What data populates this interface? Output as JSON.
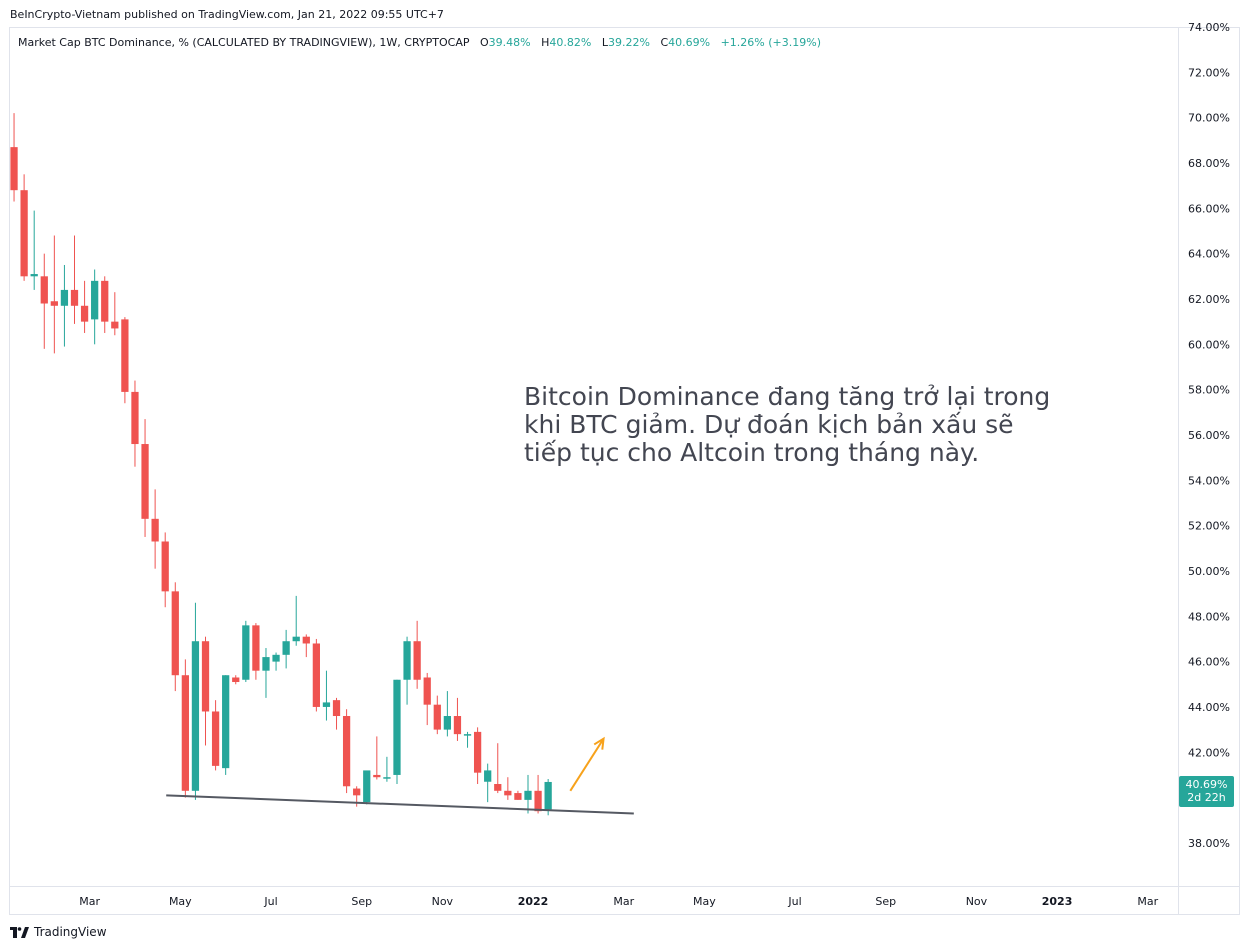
{
  "publisher_line": "BeInCrypto-Vietnam published on TradingView.com, Jan 21, 2022 09:55 UTC+7",
  "legend": {
    "symbol": "Market Cap BTC Dominance, % (CALCULATED BY TRADINGVIEW), 1W, CRYPTOCAP",
    "o_label": "O",
    "o_value": "39.48%",
    "h_label": "H",
    "h_value": "40.82%",
    "l_label": "L",
    "l_value": "39.22%",
    "c_label": "C",
    "c_value": "40.69%",
    "change": "+1.26% (+3.19%)"
  },
  "annotation": {
    "lines": [
      "Bitcoin Dominance đang tăng trở lại trong",
      "khi BTC giảm. Dự đoán kịch bản xấu sẽ",
      "tiếp tục cho Altcoin trong tháng này."
    ]
  },
  "price_tag": {
    "value": "40.69%",
    "countdown": "2d 22h"
  },
  "footer": {
    "brand": "TradingView"
  },
  "colors": {
    "up": "#26a69a",
    "down": "#ef5350",
    "trendline": "#555962",
    "arrow": "#f7a21b",
    "grid_border": "#e0e3eb"
  },
  "chart_data": {
    "type": "candlestick",
    "title": "Market Cap BTC Dominance, % (CALCULATED BY TRADINGVIEW), 1W, CRYPTOCAP",
    "y_unit": "%",
    "ylim": [
      36.1,
      74.0
    ],
    "y_ticks": [
      "38.00%",
      "40.00%",
      "42.00%",
      "44.00%",
      "46.00%",
      "48.00%",
      "50.00%",
      "52.00%",
      "54.00%",
      "56.00%",
      "58.00%",
      "60.00%",
      "62.00%",
      "64.00%",
      "66.00%",
      "68.00%",
      "70.00%",
      "72.00%",
      "74.00%"
    ],
    "x_ticks": [
      {
        "label": "Mar",
        "idx": 7.5,
        "bold": false
      },
      {
        "label": "May",
        "idx": 16.5,
        "bold": false
      },
      {
        "label": "Jul",
        "idx": 25.5,
        "bold": false
      },
      {
        "label": "Sep",
        "idx": 34.5,
        "bold": false
      },
      {
        "label": "Nov",
        "idx": 42.5,
        "bold": false
      },
      {
        "label": "2022",
        "idx": 51.5,
        "bold": true
      },
      {
        "label": "Mar",
        "idx": 60.5,
        "bold": false
      },
      {
        "label": "May",
        "idx": 68.5,
        "bold": false
      },
      {
        "label": "Jul",
        "idx": 77.5,
        "bold": false
      },
      {
        "label": "Sep",
        "idx": 86.5,
        "bold": false
      },
      {
        "label": "Nov",
        "idx": 95.5,
        "bold": false
      },
      {
        "label": "2023",
        "idx": 103.5,
        "bold": true
      },
      {
        "label": "Mar",
        "idx": 112.5,
        "bold": false
      }
    ],
    "x_range": [
      -0.5,
      115.5
    ],
    "candles": [
      {
        "o": 68.7,
        "h": 70.2,
        "l": 66.3,
        "c": 66.8
      },
      {
        "o": 66.8,
        "h": 67.5,
        "l": 62.8,
        "c": 63.0
      },
      {
        "o": 63.0,
        "h": 65.9,
        "l": 62.4,
        "c": 63.1
      },
      {
        "o": 63.0,
        "h": 64.0,
        "l": 59.8,
        "c": 61.8
      },
      {
        "o": 61.9,
        "h": 64.8,
        "l": 59.6,
        "c": 61.7
      },
      {
        "o": 61.7,
        "h": 63.5,
        "l": 59.9,
        "c": 62.4
      },
      {
        "o": 62.4,
        "h": 64.8,
        "l": 60.9,
        "c": 61.7
      },
      {
        "o": 61.7,
        "h": 62.8,
        "l": 60.5,
        "c": 61.0
      },
      {
        "o": 61.1,
        "h": 63.3,
        "l": 60.0,
        "c": 62.8
      },
      {
        "o": 62.8,
        "h": 63.0,
        "l": 60.5,
        "c": 61.0
      },
      {
        "o": 61.0,
        "h": 62.3,
        "l": 60.4,
        "c": 60.7
      },
      {
        "o": 61.1,
        "h": 61.2,
        "l": 57.4,
        "c": 57.9
      },
      {
        "o": 57.9,
        "h": 58.4,
        "l": 54.6,
        "c": 55.6
      },
      {
        "o": 55.6,
        "h": 56.7,
        "l": 51.5,
        "c": 52.3
      },
      {
        "o": 52.3,
        "h": 53.6,
        "l": 50.1,
        "c": 51.3
      },
      {
        "o": 51.3,
        "h": 51.7,
        "l": 48.4,
        "c": 49.1
      },
      {
        "o": 49.1,
        "h": 49.5,
        "l": 44.7,
        "c": 45.4
      },
      {
        "o": 45.4,
        "h": 46.1,
        "l": 40.0,
        "c": 40.3
      },
      {
        "o": 40.3,
        "h": 48.6,
        "l": 39.9,
        "c": 46.9
      },
      {
        "o": 46.9,
        "h": 47.1,
        "l": 42.3,
        "c": 43.8
      },
      {
        "o": 43.8,
        "h": 44.3,
        "l": 41.2,
        "c": 41.4
      },
      {
        "o": 41.3,
        "h": 45.4,
        "l": 41.0,
        "c": 45.4
      },
      {
        "o": 45.3,
        "h": 45.4,
        "l": 45.0,
        "c": 45.1
      },
      {
        "o": 45.2,
        "h": 47.8,
        "l": 45.1,
        "c": 47.6
      },
      {
        "o": 47.6,
        "h": 47.7,
        "l": 45.2,
        "c": 45.6
      },
      {
        "o": 45.6,
        "h": 46.6,
        "l": 44.4,
        "c": 46.2
      },
      {
        "o": 46.0,
        "h": 46.4,
        "l": 45.6,
        "c": 46.3
      },
      {
        "o": 46.3,
        "h": 47.4,
        "l": 45.7,
        "c": 46.9
      },
      {
        "o": 46.9,
        "h": 48.9,
        "l": 46.7,
        "c": 47.1
      },
      {
        "o": 47.1,
        "h": 47.2,
        "l": 46.2,
        "c": 46.8
      },
      {
        "o": 46.8,
        "h": 47.0,
        "l": 43.8,
        "c": 44.0
      },
      {
        "o": 44.0,
        "h": 45.6,
        "l": 43.4,
        "c": 44.2
      },
      {
        "o": 44.3,
        "h": 44.4,
        "l": 43.0,
        "c": 43.6
      },
      {
        "o": 43.6,
        "h": 43.9,
        "l": 40.2,
        "c": 40.5
      },
      {
        "o": 40.4,
        "h": 40.5,
        "l": 39.6,
        "c": 40.1
      },
      {
        "o": 39.8,
        "h": 40.9,
        "l": 39.7,
        "c": 41.2
      },
      {
        "o": 41.0,
        "h": 42.7,
        "l": 40.8,
        "c": 40.9
      },
      {
        "o": 40.9,
        "h": 41.8,
        "l": 40.7,
        "c": 40.9
      },
      {
        "o": 41.0,
        "h": 45.2,
        "l": 40.6,
        "c": 45.2
      },
      {
        "o": 45.2,
        "h": 47.1,
        "l": 44.1,
        "c": 46.9
      },
      {
        "o": 46.9,
        "h": 47.8,
        "l": 44.8,
        "c": 45.2
      },
      {
        "o": 45.3,
        "h": 45.5,
        "l": 43.2,
        "c": 44.1
      },
      {
        "o": 44.1,
        "h": 44.5,
        "l": 42.8,
        "c": 43.0
      },
      {
        "o": 43.0,
        "h": 44.7,
        "l": 42.7,
        "c": 43.6
      },
      {
        "o": 43.6,
        "h": 44.4,
        "l": 42.5,
        "c": 42.8
      },
      {
        "o": 42.8,
        "h": 42.9,
        "l": 42.2,
        "c": 42.8
      },
      {
        "o": 42.9,
        "h": 43.1,
        "l": 40.6,
        "c": 41.1
      },
      {
        "o": 40.7,
        "h": 41.5,
        "l": 39.8,
        "c": 41.2
      },
      {
        "o": 40.6,
        "h": 42.4,
        "l": 40.2,
        "c": 40.3
      },
      {
        "o": 40.3,
        "h": 40.9,
        "l": 39.9,
        "c": 40.1
      },
      {
        "o": 40.2,
        "h": 40.3,
        "l": 39.9,
        "c": 39.9
      },
      {
        "o": 39.9,
        "h": 41.0,
        "l": 39.3,
        "c": 40.3
      },
      {
        "o": 40.3,
        "h": 41.0,
        "l": 39.3,
        "c": 39.4
      },
      {
        "o": 39.48,
        "h": 40.82,
        "l": 39.22,
        "c": 40.69
      }
    ],
    "trendline": {
      "from": {
        "idx": 15.1,
        "value": 40.1
      },
      "to": {
        "idx": 61.5,
        "value": 39.3
      }
    },
    "arrow": {
      "from": {
        "idx": 55.2,
        "value": 40.3
      },
      "to": {
        "idx": 58.5,
        "value": 42.6
      }
    },
    "last_price": 40.69
  }
}
